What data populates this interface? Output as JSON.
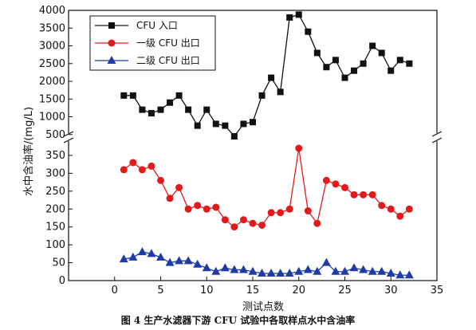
{
  "figure_caption": "图 4   生产水滤器下游 CFU 试验中各取样点水中含油率",
  "chart_data": {
    "type": "line",
    "xlabel": "测试点数",
    "ylabel": "水中含油率/(mg/L)",
    "xlim": [
      -5,
      35
    ],
    "x_ticks": [
      "0",
      "5",
      "10",
      "15",
      "20",
      "25",
      "30",
      "35"
    ],
    "y_ticks_lower": [
      "0",
      "50",
      "100",
      "150",
      "200",
      "250",
      "300",
      "350"
    ],
    "y_ticks_upper": [
      "500",
      "1000",
      "1500",
      "2000",
      "2500",
      "3000",
      "3500",
      "4000"
    ],
    "ylim_lower": [
      0,
      370
    ],
    "ylim_upper": [
      450,
      4000
    ],
    "axis_break": true,
    "grid": false,
    "legend_position": "top-left",
    "x": [
      1,
      2,
      3,
      4,
      5,
      6,
      7,
      8,
      9,
      10,
      11,
      12,
      13,
      14,
      15,
      16,
      17,
      18,
      19,
      20,
      21,
      22,
      23,
      24,
      25,
      26,
      27,
      28,
      29,
      30,
      31,
      32
    ],
    "series": [
      {
        "name": "CFU 入口",
        "color": "#111111",
        "marker": "square",
        "axis": "upper",
        "values": [
          1600,
          1600,
          1200,
          1100,
          1200,
          1400,
          1600,
          1200,
          750,
          1200,
          800,
          750,
          450,
          800,
          850,
          1600,
          2100,
          1700,
          3800,
          3880,
          3400,
          2800,
          2400,
          2600,
          2100,
          2300,
          2500,
          3000,
          2800,
          2300,
          2600,
          2500
        ]
      },
      {
        "name": "一级 CFU 出口",
        "color": "#e31a1c",
        "marker": "circle",
        "axis": "lower",
        "values": [
          310,
          330,
          310,
          320,
          280,
          230,
          260,
          200,
          210,
          200,
          205,
          170,
          150,
          170,
          160,
          155,
          190,
          190,
          200,
          370,
          195,
          160,
          280,
          270,
          260,
          240,
          240,
          240,
          210,
          200,
          180,
          200
        ]
      },
      {
        "name": "二级 CFU 出口",
        "color": "#1f3ba8",
        "marker": "triangle",
        "axis": "lower",
        "values": [
          60,
          65,
          80,
          75,
          65,
          50,
          55,
          55,
          45,
          35,
          25,
          35,
          30,
          30,
          25,
          20,
          20,
          20,
          20,
          25,
          30,
          25,
          50,
          25,
          25,
          35,
          30,
          25,
          25,
          20,
          15,
          15
        ]
      }
    ]
  }
}
